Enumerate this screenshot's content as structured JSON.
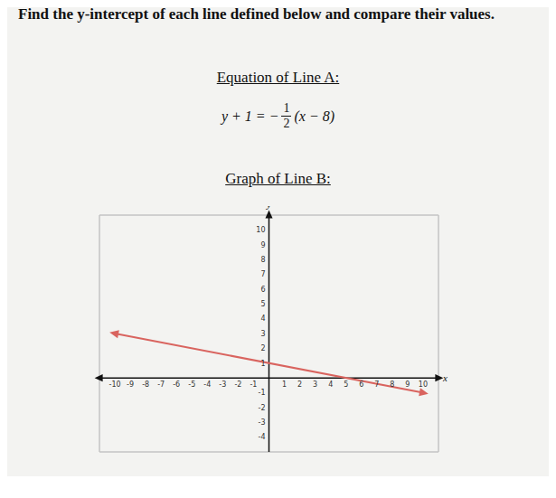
{
  "title": "Find the y-intercept of each line defined below and compare their values.",
  "line_a": {
    "heading": "Equation of Line A:",
    "equation": {
      "left": "y + 1 = −",
      "numerator": "1",
      "denominator": "2",
      "right": "(x − 8)"
    }
  },
  "line_b": {
    "heading": "Graph of Line B:"
  },
  "chart_data": {
    "type": "line",
    "x_label": "x",
    "y_label": "y",
    "x": [
      -10,
      10
    ],
    "values": [
      3,
      -1
    ],
    "color": "#d9645f",
    "marker": "arrow",
    "line_style": "solid",
    "xlim": [
      -11,
      11
    ],
    "ylim": [
      -5,
      11
    ],
    "xticks": [
      -10,
      -9,
      -8,
      -7,
      -6,
      -5,
      -4,
      -3,
      -2,
      -1,
      1,
      2,
      3,
      4,
      5,
      6,
      7,
      8,
      9,
      10
    ],
    "yticks": [
      -4,
      -3,
      -2,
      -1,
      1,
      2,
      3,
      4,
      5,
      6,
      7,
      8,
      9,
      10
    ],
    "grid": true
  }
}
